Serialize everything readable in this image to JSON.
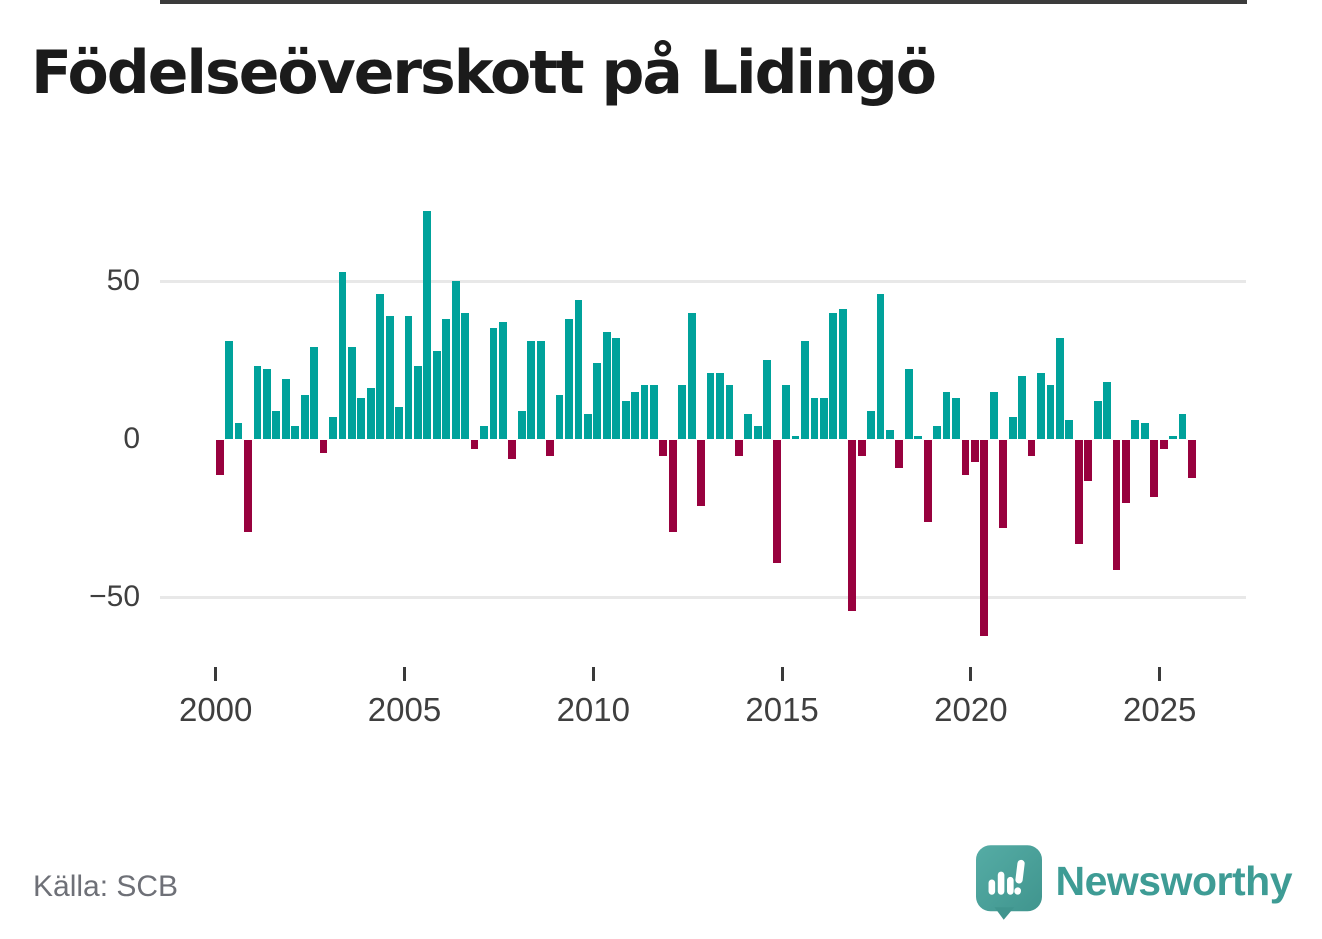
{
  "title": "Födelseöverskott på Lidingö",
  "source_label": "Källa: SCB",
  "brand": {
    "name": "Newsworthy",
    "logo": "newsworthy-speech-bubble-bar-chart-icon"
  },
  "colors": {
    "bar_positive": "#00a29b",
    "bar_negative": "#98013e",
    "zero_axis": "#3b3b3b",
    "gridline": "#e8e8e8",
    "tick_text": "#3f3f3f",
    "title_text": "#1b1b1b",
    "source_text": "#6e7077",
    "brand_teal": "#3e9c95"
  },
  "chart_data": {
    "type": "bar",
    "title": "Födelseöverskott på Lidingö",
    "xlabel": "",
    "ylabel": "",
    "frequency": "quarterly",
    "start_period": "2000-Q1",
    "end_period": "2025-Q4",
    "ylim": [
      -65,
      78
    ],
    "grid": "horizontal",
    "legend": "none",
    "ytick_values": [
      50,
      0,
      -50
    ],
    "ytick_labels": [
      "50",
      "0",
      "−50"
    ],
    "xtick_years": [
      2000,
      2005,
      2010,
      2015,
      2020,
      2025
    ],
    "xtick_labels": [
      "2000",
      "2005",
      "2010",
      "2015",
      "2020",
      "2025"
    ],
    "series": [
      {
        "name": "Födelseöverskott",
        "values_by_year": [
          {
            "year": 2000,
            "quarters": [
              -11,
              31,
              5,
              -29
            ]
          },
          {
            "year": 2001,
            "quarters": [
              23,
              22,
              9,
              19
            ]
          },
          {
            "year": 2002,
            "quarters": [
              4,
              14,
              29,
              -4
            ]
          },
          {
            "year": 2003,
            "quarters": [
              7,
              53,
              29,
              13
            ]
          },
          {
            "year": 2004,
            "quarters": [
              16,
              46,
              39,
              10
            ]
          },
          {
            "year": 2005,
            "quarters": [
              39,
              23,
              72,
              28
            ]
          },
          {
            "year": 2006,
            "quarters": [
              38,
              50,
              40,
              -3
            ]
          },
          {
            "year": 2007,
            "quarters": [
              4,
              35,
              37,
              -6
            ]
          },
          {
            "year": 2008,
            "quarters": [
              9,
              31,
              31,
              -5
            ]
          },
          {
            "year": 2009,
            "quarters": [
              14,
              38,
              44,
              8
            ]
          },
          {
            "year": 2010,
            "quarters": [
              24,
              34,
              32,
              12
            ]
          },
          {
            "year": 2011,
            "quarters": [
              15,
              17,
              17,
              -5
            ]
          },
          {
            "year": 2012,
            "quarters": [
              -29,
              17,
              40,
              -21
            ]
          },
          {
            "year": 2013,
            "quarters": [
              21,
              21,
              17,
              -5
            ]
          },
          {
            "year": 2014,
            "quarters": [
              8,
              4,
              25,
              -39
            ]
          },
          {
            "year": 2015,
            "quarters": [
              17,
              1,
              31,
              13
            ]
          },
          {
            "year": 2016,
            "quarters": [
              13,
              40,
              41,
              -54
            ]
          },
          {
            "year": 2017,
            "quarters": [
              -5,
              9,
              46,
              3
            ]
          },
          {
            "year": 2018,
            "quarters": [
              -9,
              22,
              1,
              -26
            ]
          },
          {
            "year": 2019,
            "quarters": [
              4,
              15,
              13,
              -11
            ]
          },
          {
            "year": 2020,
            "quarters": [
              -7,
              -62,
              15,
              -28
            ]
          },
          {
            "year": 2021,
            "quarters": [
              7,
              20,
              -5,
              21
            ]
          },
          {
            "year": 2022,
            "quarters": [
              17,
              32,
              6,
              -33
            ]
          },
          {
            "year": 2023,
            "quarters": [
              -13,
              12,
              18,
              -41
            ]
          },
          {
            "year": 2024,
            "quarters": [
              -20,
              6,
              5,
              -18
            ]
          },
          {
            "year": 2025,
            "quarters": [
              -3,
              1,
              8,
              -12
            ]
          }
        ]
      }
    ]
  }
}
